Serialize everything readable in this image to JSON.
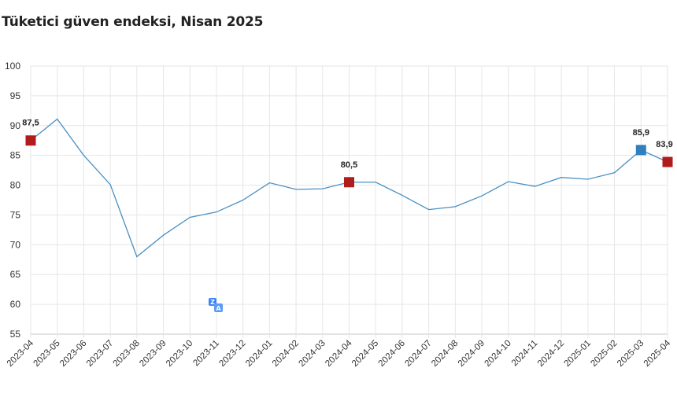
{
  "chart_data": {
    "type": "line",
    "title": "Tüketici güven endeksi, Nisan 2025",
    "xlabel": "",
    "ylabel": "",
    "ylim": [
      55,
      100
    ],
    "yticks": [
      55,
      60,
      65,
      70,
      75,
      80,
      85,
      90,
      95,
      100
    ],
    "grid": true,
    "legend": "none",
    "categories": [
      "2023-04",
      "2023-05",
      "2023-06",
      "2023-07",
      "2023-08",
      "2023-09",
      "2023-10",
      "2023-11",
      "2023-12",
      "2024-01",
      "2024-02",
      "2024-03",
      "2024-04",
      "2024-05",
      "2024-06",
      "2024-07",
      "2024-08",
      "2024-09",
      "2024-10",
      "2024-11",
      "2024-12",
      "2025-01",
      "2025-02",
      "2025-03",
      "2025-04"
    ],
    "values": [
      87.5,
      91.1,
      85.0,
      80.1,
      68.0,
      71.6,
      74.6,
      75.5,
      77.5,
      80.4,
      79.3,
      79.4,
      80.5,
      80.5,
      78.3,
      75.9,
      76.4,
      78.2,
      80.6,
      79.8,
      81.3,
      81.0,
      82.1,
      85.9,
      83.9
    ],
    "line_color": "#4a90c2",
    "highlighted_points": [
      {
        "x": "2023-04",
        "label": "87,5",
        "color": "#b01c1c"
      },
      {
        "x": "2024-04",
        "label": "80,5",
        "color": "#b01c1c"
      },
      {
        "x": "2025-03",
        "label": "85,9",
        "color": "#2f7fc1"
      },
      {
        "x": "2025-04",
        "label": "83,9",
        "color": "#b01c1c"
      }
    ]
  },
  "overlay": {
    "icon": "translate-icon",
    "color": "#3b82f6"
  }
}
